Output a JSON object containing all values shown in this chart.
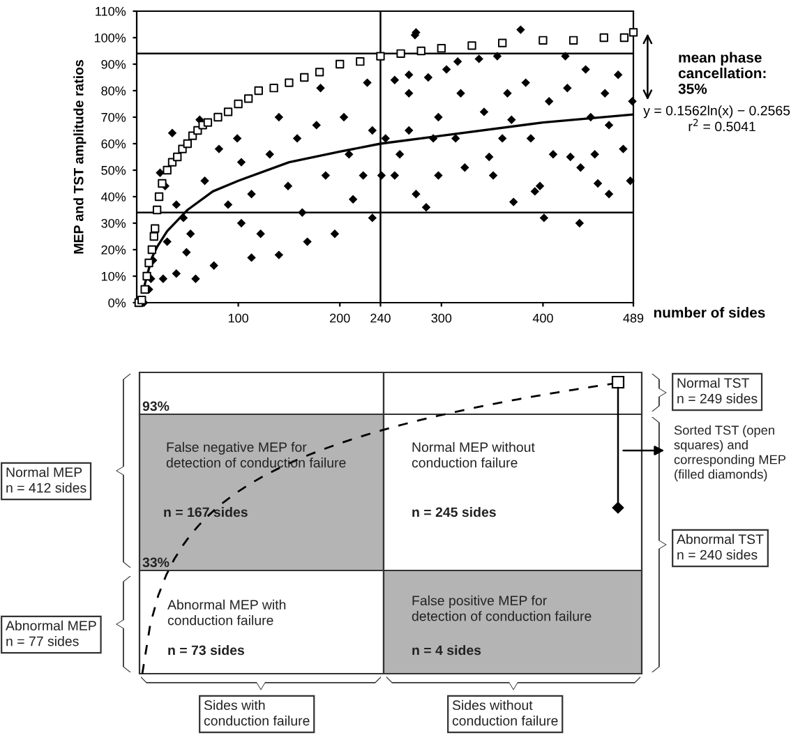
{
  "chart_data": [
    {
      "type": "scatter",
      "ylabel": "MEP and TST amplitude ratios",
      "xlabel": "number of sides",
      "xlim": [
        0,
        489
      ],
      "ylim": [
        0,
        110
      ],
      "xticks": [
        100,
        200,
        240,
        300,
        400,
        489
      ],
      "yticks": [
        {
          "value": 0,
          "label": "0%"
        },
        {
          "value": 10,
          "label": "10%"
        },
        {
          "value": 20,
          "label": "20%"
        },
        {
          "value": 30,
          "label": "30%"
        },
        {
          "value": 40,
          "label": "40%"
        },
        {
          "value": 50,
          "label": "50%"
        },
        {
          "value": 60,
          "label": "60%"
        },
        {
          "value": 70,
          "label": "70%"
        },
        {
          "value": 80,
          "label": "80%"
        },
        {
          "value": 90,
          "label": "90%"
        },
        {
          "value": 100,
          "label": "100%"
        },
        {
          "value": 110,
          "label": "110%"
        }
      ],
      "grid": false,
      "legend": false,
      "ref_lines": [
        {
          "axis": "y",
          "value": 94,
          "color": "#000000"
        },
        {
          "axis": "y",
          "value": 34,
          "color": "#000000"
        },
        {
          "axis": "x",
          "value": 240,
          "color": "#000000"
        }
      ],
      "annotations": [
        "mean phase cancellation: 35%",
        "y = 0.1562ln(x) − 0.2565",
        "r$^{2}$ = 0.5041"
      ],
      "series": [
        {
          "type": "line",
          "color": "#000000",
          "marker": "none",
          "line_style": "solid",
          "x": [
            8,
            10,
            15,
            20,
            30,
            50,
            75,
            100,
            150,
            200,
            240,
            300,
            400,
            489
          ],
          "values": [
            7,
            10,
            17,
            21,
            27,
            35,
            42,
            46,
            53,
            57,
            60,
            63,
            68,
            71
          ]
        },
        {
          "type": "scatter",
          "color": "#000000",
          "marker": "diamond",
          "x": [
            7,
            12,
            14,
            16,
            35,
            62,
            23,
            28,
            39,
            46,
            53,
            30,
            49,
            26,
            58,
            76,
            67,
            81,
            90,
            99,
            103,
            103,
            113,
            122,
            113,
            131,
            140,
            149,
            140,
            158,
            163,
            168,
            177,
            181,
            186,
            195,
            204,
            209,
            213,
            227,
            232,
            223,
            232,
            241,
            245,
            268,
            275,
            274,
            275,
            254,
            268,
            259,
            254,
            287,
            297,
            292,
            297,
            285,
            316,
            319,
            314,
            323,
            337,
            342,
            347,
            351,
            355,
            365,
            369,
            371,
            378,
            383,
            388,
            392,
            401,
            397,
            406,
            410,
            422,
            424,
            427,
            436,
            442,
            447,
            451,
            454,
            461,
            465,
            465,
            474,
            479,
            486,
            488,
            437,
            268,
            360,
            305,
            39
          ],
          "values": [
            0,
            5,
            9,
            16,
            64,
            69,
            49,
            44,
            37,
            32,
            26,
            23,
            19,
            9,
            9,
            14,
            46,
            58,
            37,
            62,
            53,
            30,
            41,
            26,
            17,
            56,
            70,
            44,
            18,
            62,
            34,
            23,
            67,
            81,
            48,
            26,
            70,
            56,
            39,
            83,
            65,
            48,
            32,
            48,
            62,
            86,
            41,
            101,
            102,
            84,
            79,
            56,
            48,
            85,
            70,
            62,
            48,
            36,
            91,
            79,
            62,
            51,
            92,
            72,
            55,
            48,
            93,
            79,
            69,
            38,
            103,
            83,
            62,
            42,
            32,
            44,
            76,
            56,
            93,
            81,
            55,
            30,
            88,
            70,
            56,
            45,
            79,
            67,
            41,
            86,
            58,
            46,
            76,
            51,
            65,
            62,
            88,
            11
          ]
        },
        {
          "type": "scatter",
          "color": "#000000",
          "marker": "square",
          "x": [
            2,
            5,
            8,
            10,
            12,
            15,
            17,
            18,
            20,
            22,
            25,
            30,
            35,
            40,
            45,
            50,
            55,
            60,
            65,
            70,
            80,
            90,
            100,
            110,
            120,
            135,
            150,
            165,
            180,
            200,
            220,
            240,
            260,
            280,
            300,
            330,
            360,
            400,
            430,
            460,
            480,
            489
          ],
          "values": [
            0,
            1,
            5,
            10,
            15,
            20,
            25,
            28,
            35,
            40,
            45,
            50,
            53,
            55,
            58,
            60,
            63,
            65,
            67,
            68,
            70,
            72,
            75,
            77,
            80,
            81,
            83,
            85,
            87,
            90,
            91,
            93,
            94,
            95,
            96,
            97,
            98,
            99,
            99,
            100,
            100,
            102
          ]
        }
      ]
    },
    {
      "type": "other",
      "annotations": [
        "93%",
        "33%",
        "False negative MEP for\ndetection of conduction failure",
        "n = 167 sides",
        "Abnormal MEP with\nconduction failure",
        "n = 73 sides",
        "Normal MEP without\nconduction failure",
        "n = 245 sides",
        "False positive MEP for\ndetection of conduction failure",
        "n = 4 sides",
        "Normal MEP\nn = 412 sides",
        "Abnormal MEP\nn = 77 sides",
        "Normal TST\nn = 249 sides",
        "Sorted TST (open\nsquares) and\ncorresponding MEP\n(filled diamonds)",
        "Abnormal TST\nn = 240 sides",
        "Sides with\nconduction failure",
        "Sides without\nconduction failure"
      ]
    }
  ]
}
